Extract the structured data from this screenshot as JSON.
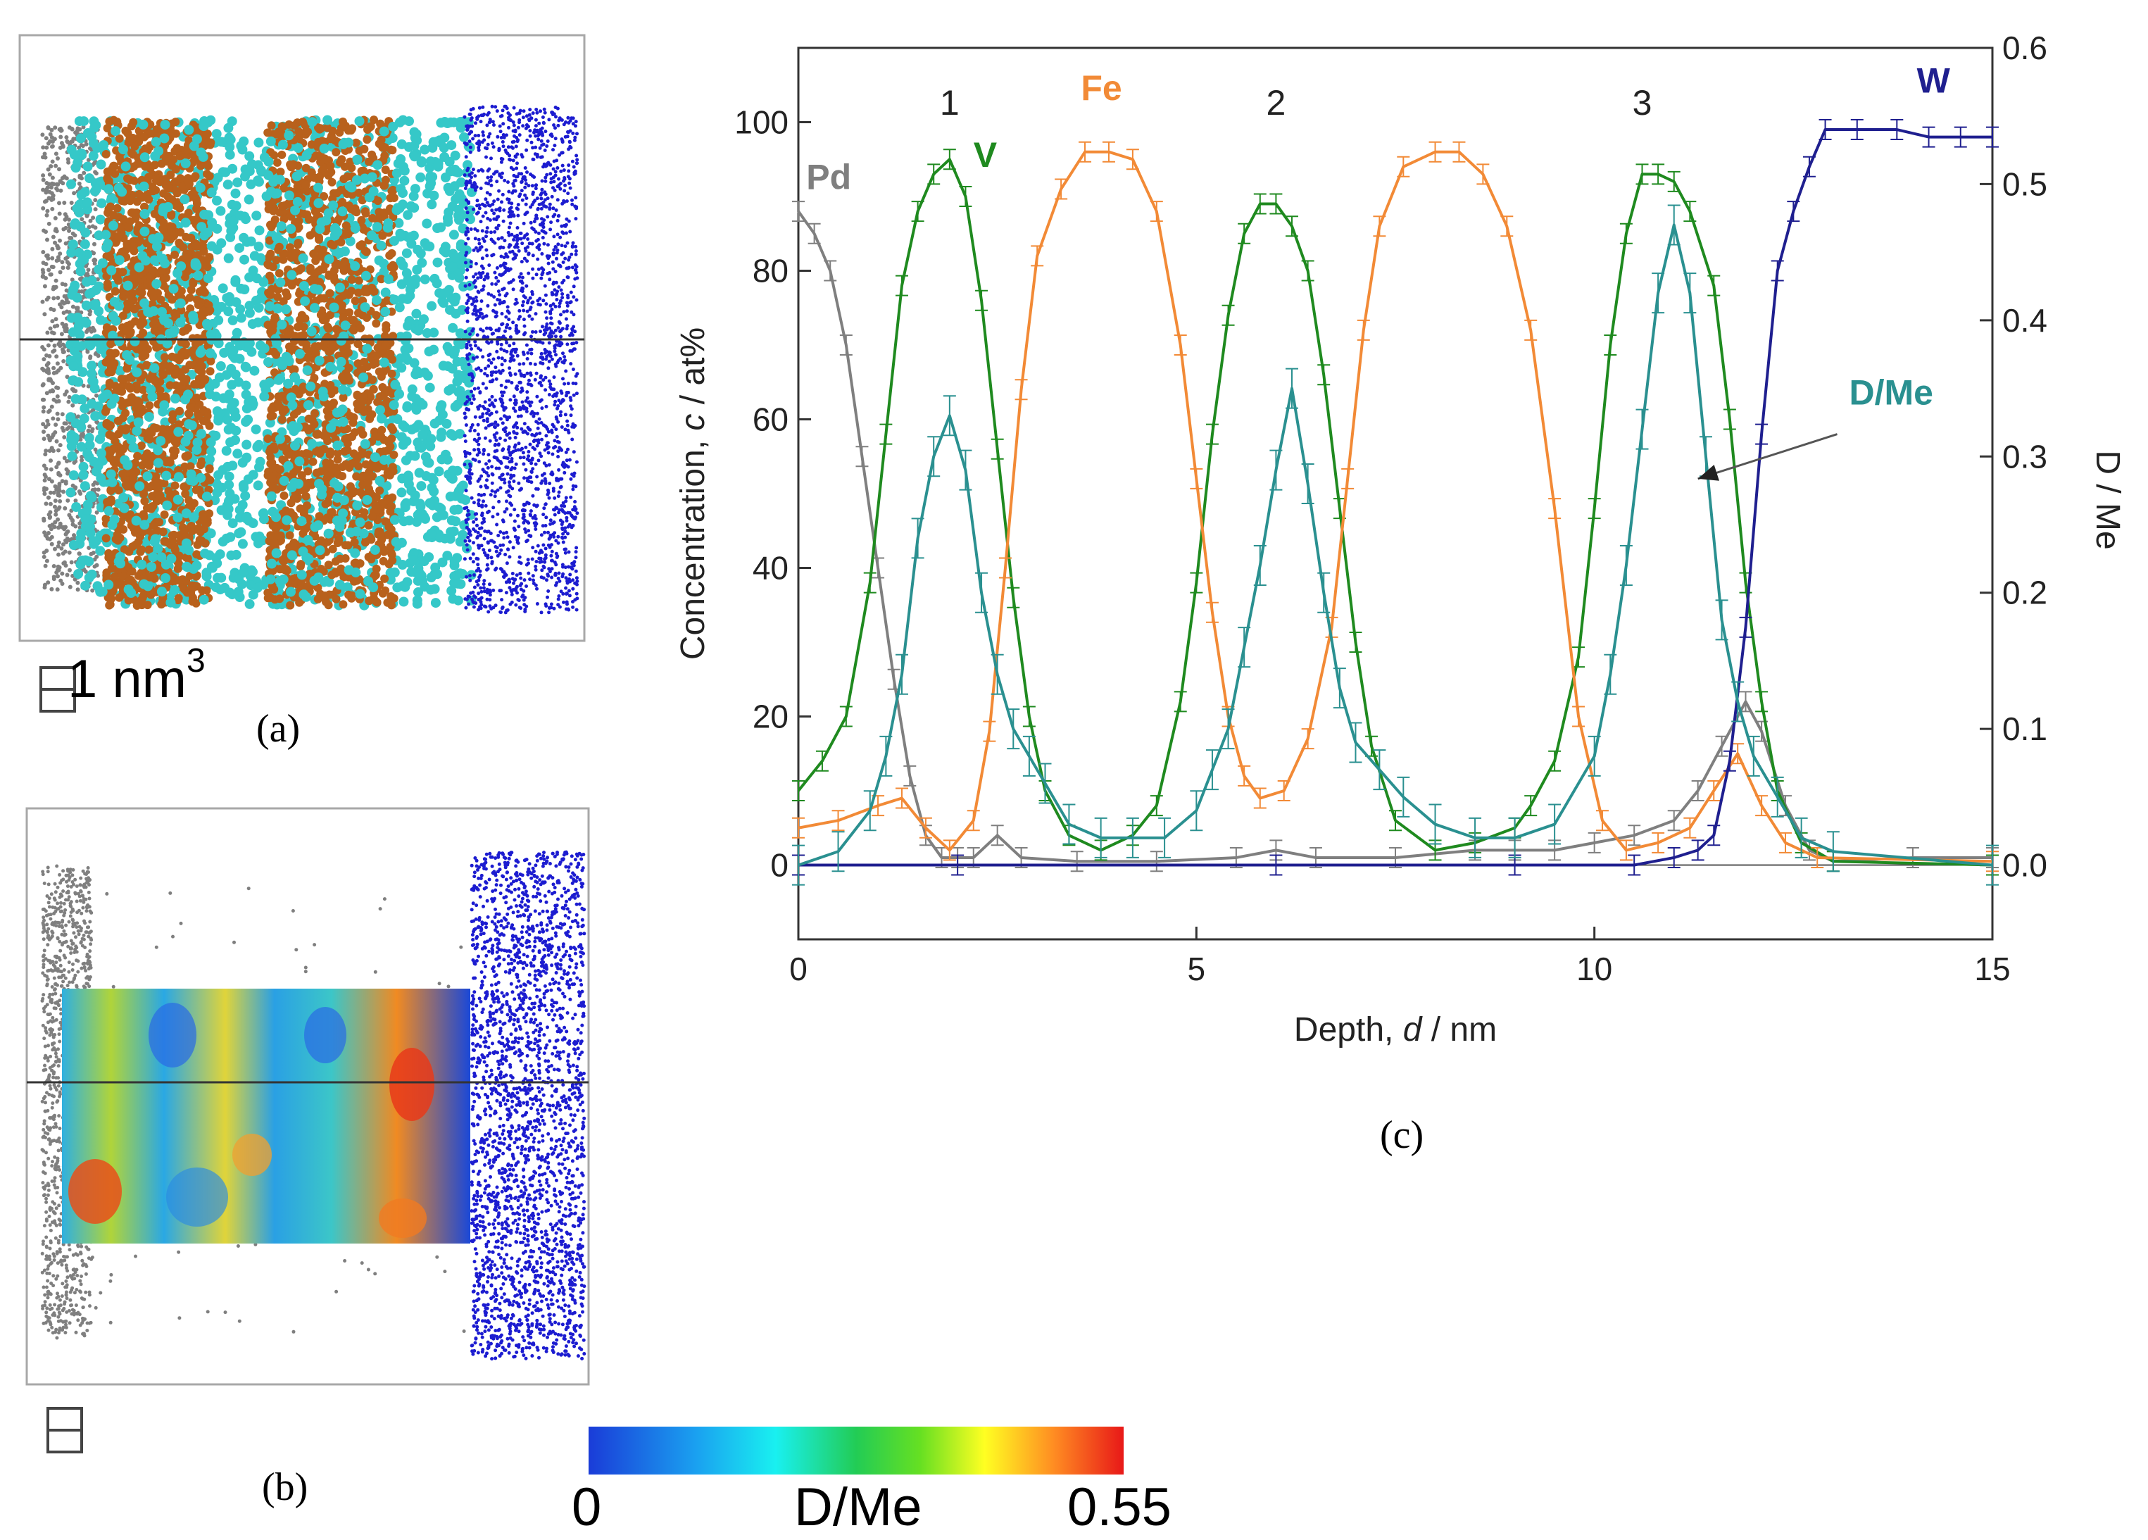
{
  "panels": {
    "a": {
      "label": "(a)",
      "scale_text": "1 nm",
      "scale_sup": "3"
    },
    "b": {
      "label": "(b)"
    },
    "c": {
      "label": "(c)"
    }
  },
  "colorbar": {
    "min_label": "0",
    "max_label": "0.55",
    "title": "D/Me"
  },
  "colors": {
    "Pd": "#7f7f7f",
    "V": "#1f8a1f",
    "Fe": "#f28a36",
    "W": "#1f1f8f",
    "DMe": "#2a9090",
    "cyan_atoms": "#35c8c8",
    "brown_atoms": "#b8611c",
    "blue_atoms": "#1c1cd0"
  },
  "chart_data": {
    "type": "line",
    "xlabel_prefix": "Depth, ",
    "xlabel_var": "d",
    "xlabel_suffix": " / nm",
    "ylabel_prefix": "Concentration, ",
    "ylabel_var": "c",
    "ylabel_suffix": " / at%",
    "y2label": "D / Me",
    "xlim": [
      0,
      15
    ],
    "ylim": [
      -10,
      110
    ],
    "y2lim": [
      -0.0545,
      0.6
    ],
    "xticks": [
      "0",
      "5",
      "10",
      "15"
    ],
    "yticks": [
      "0",
      "20",
      "40",
      "60",
      "80",
      "100"
    ],
    "y2ticks": [
      "0.0",
      "0.1",
      "0.2",
      "0.3",
      "0.4",
      "0.5",
      "0.6"
    ],
    "peak_labels": [
      {
        "text": "1",
        "x": 1.9,
        "y": 101
      },
      {
        "text": "2",
        "x": 6.0,
        "y": 101
      },
      {
        "text": "3",
        "x": 10.6,
        "y": 101
      }
    ],
    "series": [
      {
        "name": "Pd",
        "axis": "left",
        "points": [
          [
            0,
            88
          ],
          [
            0.2,
            85
          ],
          [
            0.4,
            80
          ],
          [
            0.6,
            70
          ],
          [
            0.8,
            55
          ],
          [
            1.0,
            40
          ],
          [
            1.2,
            25
          ],
          [
            1.4,
            12
          ],
          [
            1.6,
            4
          ],
          [
            1.8,
            1
          ],
          [
            2.0,
            1
          ],
          [
            2.2,
            1
          ],
          [
            2.5,
            4
          ],
          [
            2.8,
            1
          ],
          [
            3.5,
            0.5
          ],
          [
            4.5,
            0.5
          ],
          [
            5.5,
            1
          ],
          [
            6.0,
            2
          ],
          [
            6.5,
            1
          ],
          [
            7.5,
            1
          ],
          [
            8.5,
            2
          ],
          [
            9.0,
            2
          ],
          [
            9.5,
            2
          ],
          [
            10.0,
            3
          ],
          [
            10.5,
            4
          ],
          [
            11.0,
            6
          ],
          [
            11.3,
            10
          ],
          [
            11.6,
            16
          ],
          [
            11.9,
            22
          ],
          [
            12.1,
            18
          ],
          [
            12.4,
            8
          ],
          [
            12.7,
            2
          ],
          [
            13.0,
            0.5
          ],
          [
            14.0,
            1
          ],
          [
            15.0,
            1
          ]
        ]
      },
      {
        "name": "V",
        "axis": "left",
        "points": [
          [
            0,
            10
          ],
          [
            0.3,
            14
          ],
          [
            0.6,
            20
          ],
          [
            0.9,
            38
          ],
          [
            1.1,
            58
          ],
          [
            1.3,
            78
          ],
          [
            1.5,
            88
          ],
          [
            1.7,
            93
          ],
          [
            1.9,
            95
          ],
          [
            2.1,
            90
          ],
          [
            2.3,
            76
          ],
          [
            2.5,
            56
          ],
          [
            2.7,
            36
          ],
          [
            2.9,
            20
          ],
          [
            3.1,
            10
          ],
          [
            3.4,
            4
          ],
          [
            3.8,
            2
          ],
          [
            4.2,
            4
          ],
          [
            4.5,
            8
          ],
          [
            4.8,
            22
          ],
          [
            5.0,
            38
          ],
          [
            5.2,
            58
          ],
          [
            5.4,
            74
          ],
          [
            5.6,
            85
          ],
          [
            5.8,
            89
          ],
          [
            6.0,
            89
          ],
          [
            6.2,
            86
          ],
          [
            6.4,
            80
          ],
          [
            6.6,
            66
          ],
          [
            6.8,
            48
          ],
          [
            7.0,
            30
          ],
          [
            7.2,
            16
          ],
          [
            7.5,
            6
          ],
          [
            8.0,
            2
          ],
          [
            8.5,
            3
          ],
          [
            9.0,
            5
          ],
          [
            9.2,
            8
          ],
          [
            9.5,
            14
          ],
          [
            9.8,
            28
          ],
          [
            10.0,
            48
          ],
          [
            10.2,
            70
          ],
          [
            10.4,
            85
          ],
          [
            10.6,
            93
          ],
          [
            10.8,
            93
          ],
          [
            11.0,
            92
          ],
          [
            11.2,
            88
          ],
          [
            11.5,
            78
          ],
          [
            11.7,
            60
          ],
          [
            11.9,
            38
          ],
          [
            12.1,
            22
          ],
          [
            12.3,
            10
          ],
          [
            12.6,
            3
          ],
          [
            13.0,
            0.5
          ],
          [
            15.0,
            0
          ]
        ]
      },
      {
        "name": "Fe",
        "axis": "left",
        "points": [
          [
            0,
            5
          ],
          [
            0.5,
            6
          ],
          [
            1.0,
            8
          ],
          [
            1.3,
            9
          ],
          [
            1.6,
            5
          ],
          [
            1.9,
            2
          ],
          [
            2.2,
            6
          ],
          [
            2.4,
            18
          ],
          [
            2.6,
            40
          ],
          [
            2.8,
            64
          ],
          [
            3.0,
            82
          ],
          [
            3.3,
            91
          ],
          [
            3.6,
            96
          ],
          [
            3.9,
            96
          ],
          [
            4.2,
            95
          ],
          [
            4.5,
            88
          ],
          [
            4.8,
            70
          ],
          [
            5.0,
            52
          ],
          [
            5.2,
            34
          ],
          [
            5.4,
            20
          ],
          [
            5.6,
            12
          ],
          [
            5.8,
            9
          ],
          [
            6.1,
            10
          ],
          [
            6.4,
            17
          ],
          [
            6.7,
            32
          ],
          [
            6.9,
            52
          ],
          [
            7.1,
            72
          ],
          [
            7.3,
            86
          ],
          [
            7.6,
            94
          ],
          [
            8.0,
            96
          ],
          [
            8.3,
            96
          ],
          [
            8.6,
            93
          ],
          [
            8.9,
            86
          ],
          [
            9.2,
            72
          ],
          [
            9.5,
            48
          ],
          [
            9.8,
            20
          ],
          [
            10.1,
            6
          ],
          [
            10.4,
            2
          ],
          [
            10.8,
            3
          ],
          [
            11.2,
            5
          ],
          [
            11.5,
            10
          ],
          [
            11.8,
            15
          ],
          [
            12.1,
            8
          ],
          [
            12.4,
            3
          ],
          [
            12.8,
            1
          ],
          [
            15.0,
            0.5
          ]
        ]
      },
      {
        "name": "W",
        "axis": "left",
        "points": [
          [
            0,
            0
          ],
          [
            2.0,
            0
          ],
          [
            6.0,
            0
          ],
          [
            9.0,
            0
          ],
          [
            10.5,
            0
          ],
          [
            11.0,
            1
          ],
          [
            11.3,
            2
          ],
          [
            11.5,
            4
          ],
          [
            11.7,
            14
          ],
          [
            11.9,
            32
          ],
          [
            12.1,
            58
          ],
          [
            12.3,
            80
          ],
          [
            12.5,
            88
          ],
          [
            12.7,
            94
          ],
          [
            12.9,
            99
          ],
          [
            13.3,
            99
          ],
          [
            13.8,
            99
          ],
          [
            14.2,
            98
          ],
          [
            14.6,
            98
          ],
          [
            15.0,
            98
          ]
        ]
      },
      {
        "name": "D/Me",
        "axis": "right",
        "points": [
          [
            0,
            0
          ],
          [
            0.5,
            0.01
          ],
          [
            0.9,
            0.04
          ],
          [
            1.1,
            0.08
          ],
          [
            1.3,
            0.14
          ],
          [
            1.5,
            0.24
          ],
          [
            1.7,
            0.3
          ],
          [
            1.9,
            0.33
          ],
          [
            2.1,
            0.29
          ],
          [
            2.3,
            0.2
          ],
          [
            2.5,
            0.14
          ],
          [
            2.7,
            0.1
          ],
          [
            2.9,
            0.08
          ],
          [
            3.1,
            0.06
          ],
          [
            3.4,
            0.03
          ],
          [
            3.8,
            0.02
          ],
          [
            4.2,
            0.02
          ],
          [
            4.6,
            0.02
          ],
          [
            5.0,
            0.04
          ],
          [
            5.2,
            0.07
          ],
          [
            5.4,
            0.1
          ],
          [
            5.6,
            0.16
          ],
          [
            5.8,
            0.22
          ],
          [
            6.0,
            0.29
          ],
          [
            6.2,
            0.35
          ],
          [
            6.4,
            0.28
          ],
          [
            6.6,
            0.2
          ],
          [
            6.8,
            0.13
          ],
          [
            7.0,
            0.09
          ],
          [
            7.3,
            0.07
          ],
          [
            7.6,
            0.05
          ],
          [
            8.0,
            0.03
          ],
          [
            8.5,
            0.02
          ],
          [
            9.0,
            0.02
          ],
          [
            9.5,
            0.03
          ],
          [
            10.0,
            0.08
          ],
          [
            10.2,
            0.14
          ],
          [
            10.4,
            0.22
          ],
          [
            10.6,
            0.32
          ],
          [
            10.8,
            0.42
          ],
          [
            11.0,
            0.47
          ],
          [
            11.2,
            0.42
          ],
          [
            11.4,
            0.3
          ],
          [
            11.6,
            0.18
          ],
          [
            11.8,
            0.12
          ],
          [
            12.0,
            0.08
          ],
          [
            12.3,
            0.05
          ],
          [
            12.6,
            0.02
          ],
          [
            13.0,
            0.01
          ],
          [
            15.0,
            0
          ]
        ]
      }
    ],
    "series_labels": [
      {
        "name": "Pd",
        "text": "Pd",
        "x": 0.1,
        "y": 91
      },
      {
        "name": "V",
        "text": "V",
        "x": 2.2,
        "y": 94
      },
      {
        "name": "Fe",
        "text": "Fe",
        "x": 3.55,
        "y": 103
      },
      {
        "name": "W",
        "text": "W",
        "x": 14.05,
        "y": 104
      },
      {
        "name": "D/Me",
        "text": "D/Me",
        "x": 13.2,
        "y": 62
      }
    ],
    "arrow": {
      "from": [
        13.05,
        58
      ],
      "to": [
        11.3,
        52
      ]
    }
  }
}
